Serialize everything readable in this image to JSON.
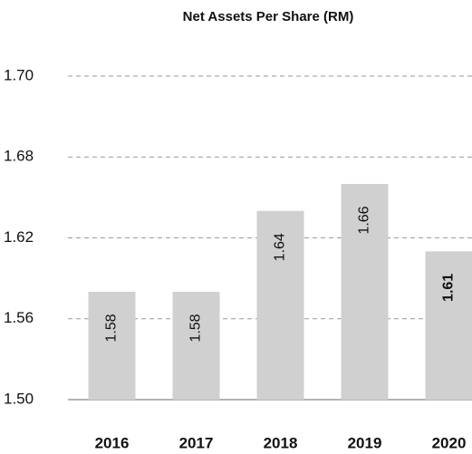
{
  "chart_data": {
    "type": "bar",
    "title": "Net Assets Per Share (RM)",
    "categories": [
      "2016",
      "2017",
      "2018",
      "2019",
      "2020"
    ],
    "values": [
      1.58,
      1.58,
      1.64,
      1.66,
      1.61
    ],
    "color": "#d0d0d0",
    "ylim": [
      1.5,
      1.7
    ],
    "yticks": [
      {
        "value": 1.5,
        "label": "1.50"
      },
      1.56,
      1.62,
      1.68,
      {
        "value": 1.7,
        "label": "1.70"
      }
    ],
    "grid": true
  }
}
